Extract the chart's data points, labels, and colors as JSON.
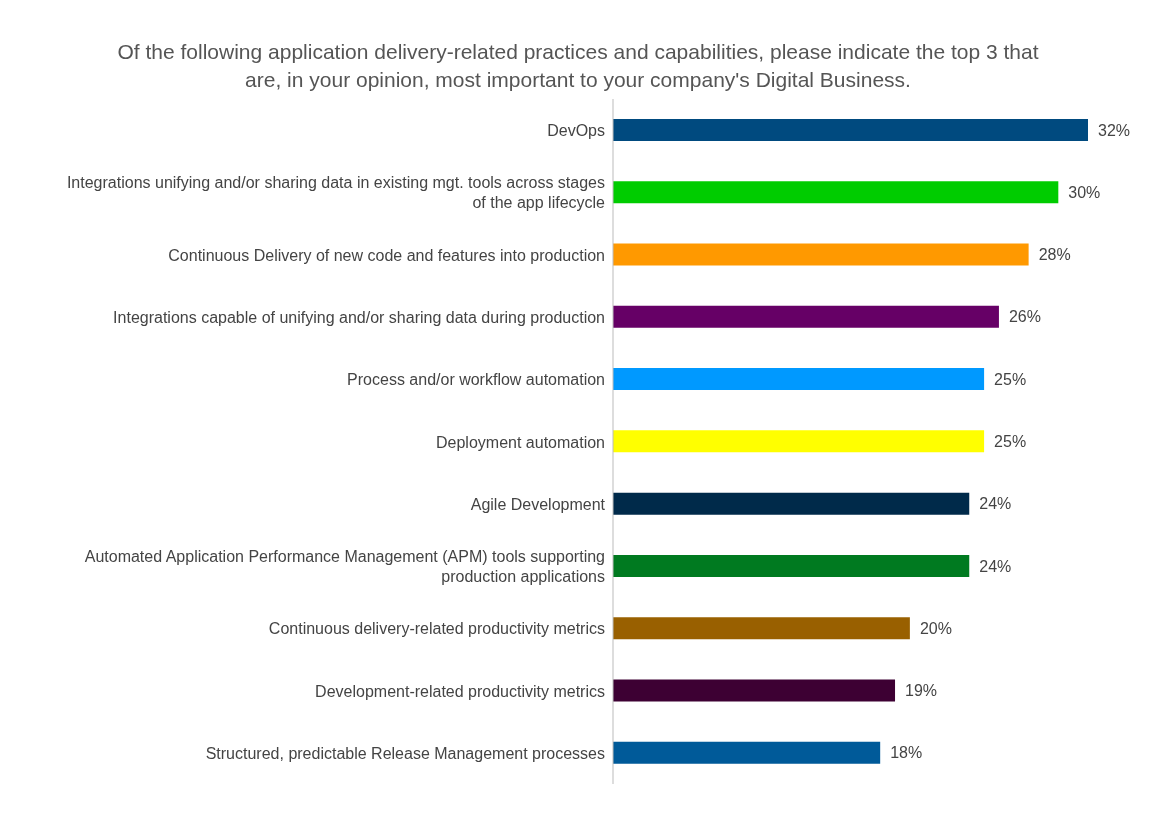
{
  "chart_data": {
    "type": "bar",
    "orientation": "horizontal",
    "title": "Of the following application delivery-related practices and capabilities, please indicate the top 3 that are, in your opinion, most important to your company's Digital Business.",
    "categories": [
      "DevOps",
      "Integrations unifying and/or sharing data in existing mgt. tools across stages of the app lifecycle",
      "Continuous Delivery of new code and features into production",
      "Integrations capable of unifying and/or sharing data during production",
      "Process and/or workflow automation",
      "Deployment automation",
      "Agile Development",
      "Automated Application Performance Management (APM) tools supporting production applications",
      "Continuous delivery-related productivity metrics",
      "Development-related productivity metrics",
      "Structured, predictable Release Management processes"
    ],
    "values": [
      32,
      30,
      28,
      26,
      25,
      25,
      24,
      24,
      20,
      19,
      18
    ],
    "value_labels": [
      "32%",
      "30%",
      "28%",
      "26%",
      "25%",
      "25%",
      "24%",
      "24%",
      "20%",
      "19%",
      "18%"
    ],
    "colors": [
      "#004a7f",
      "#00cc00",
      "#ff9900",
      "#660066",
      "#0099ff",
      "#ffff00",
      "#002a4a",
      "#007a20",
      "#996000",
      "#3d0033",
      "#005a99"
    ]
  }
}
